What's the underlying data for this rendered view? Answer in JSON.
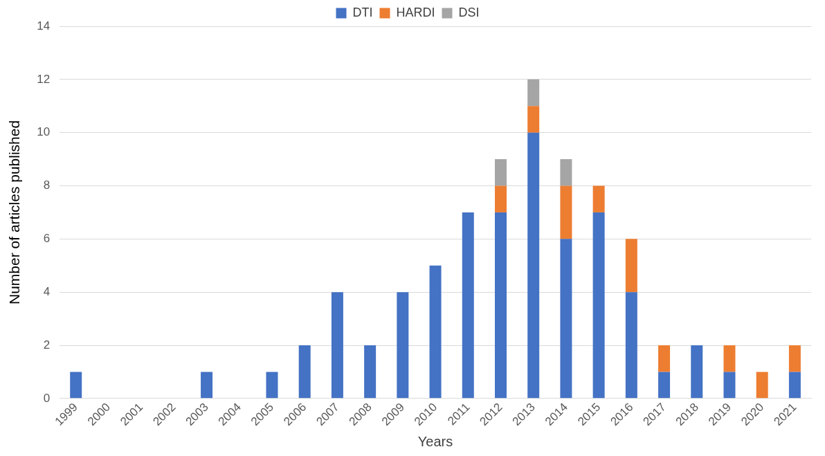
{
  "chart_data": {
    "type": "bar",
    "stacked": true,
    "xlabel": "Years",
    "ylabel": "Number of articles published",
    "categories": [
      "1999",
      "2000",
      "2001",
      "2002",
      "2003",
      "2004",
      "2005",
      "2006",
      "2007",
      "2008",
      "2009",
      "2010",
      "2011",
      "2012",
      "2013",
      "2014",
      "2015",
      "2016",
      "2017",
      "2018",
      "2019",
      "2020",
      "2021"
    ],
    "series": [
      {
        "name": "DTI",
        "color": "#4472c4",
        "values": [
          1,
          0,
          0,
          0,
          1,
          0,
          1,
          2,
          4,
          2,
          4,
          5,
          7,
          7,
          10,
          6,
          7,
          4,
          1,
          2,
          1,
          0,
          1
        ]
      },
      {
        "name": "HARDI",
        "color": "#ed7d31",
        "values": [
          0,
          0,
          0,
          0,
          0,
          0,
          0,
          0,
          0,
          0,
          0,
          0,
          0,
          1,
          1,
          2,
          1,
          2,
          1,
          0,
          1,
          1,
          1
        ]
      },
      {
        "name": "DSI",
        "color": "#a5a5a5",
        "values": [
          0,
          0,
          0,
          0,
          0,
          0,
          0,
          0,
          0,
          0,
          0,
          0,
          0,
          1,
          1,
          1,
          0,
          0,
          0,
          0,
          0,
          0,
          0
        ]
      }
    ],
    "ylim": [
      0,
      14
    ],
    "yticks": [
      0,
      2,
      4,
      6,
      8,
      10,
      12,
      14
    ],
    "grid": "y",
    "legend": "top"
  }
}
